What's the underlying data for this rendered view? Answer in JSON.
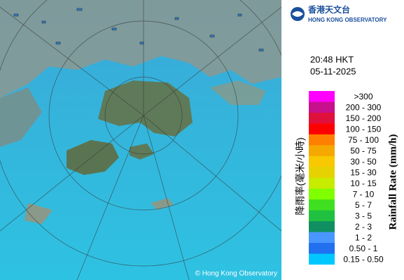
{
  "header": {
    "title_zh": "香港天文台",
    "title_en": "HONG KONG OBSERVATORY"
  },
  "time": "20:48 HKT",
  "date": "05-11-2025",
  "legend": {
    "title_zh": "降雨率(毫米/小時)",
    "title_en": "Rainfall Rate (mm/h)",
    "items": [
      {
        "label": ">300",
        "color": "#ff00ff"
      },
      {
        "label": "200 - 300",
        "color": "#c8108c"
      },
      {
        "label": "150 - 200",
        "color": "#e0103c"
      },
      {
        "label": "100 - 150",
        "color": "#ff0000"
      },
      {
        "label": "75 - 100",
        "color": "#ff8000"
      },
      {
        "label": "50 - 75",
        "color": "#f4a800"
      },
      {
        "label": "30 - 50",
        "color": "#f8c800"
      },
      {
        "label": "15 - 30",
        "color": "#e6d200"
      },
      {
        "label": "10 - 15",
        "color": "#c8ec00"
      },
      {
        "label": "7 - 10",
        "color": "#80ff00"
      },
      {
        "label": "5 - 7",
        "color": "#40e020"
      },
      {
        "label": "3 - 5",
        "color": "#20c040"
      },
      {
        "label": "2 - 3",
        "color": "#109060"
      },
      {
        "label": "1 - 2",
        "color": "#4a96ff"
      },
      {
        "label": "0.50 - 1",
        "color": "#2070f0"
      },
      {
        "label": "0.15 - 0.50",
        "color": "#00c8ff"
      }
    ]
  },
  "copyright": "© Hong Kong Observatory"
}
